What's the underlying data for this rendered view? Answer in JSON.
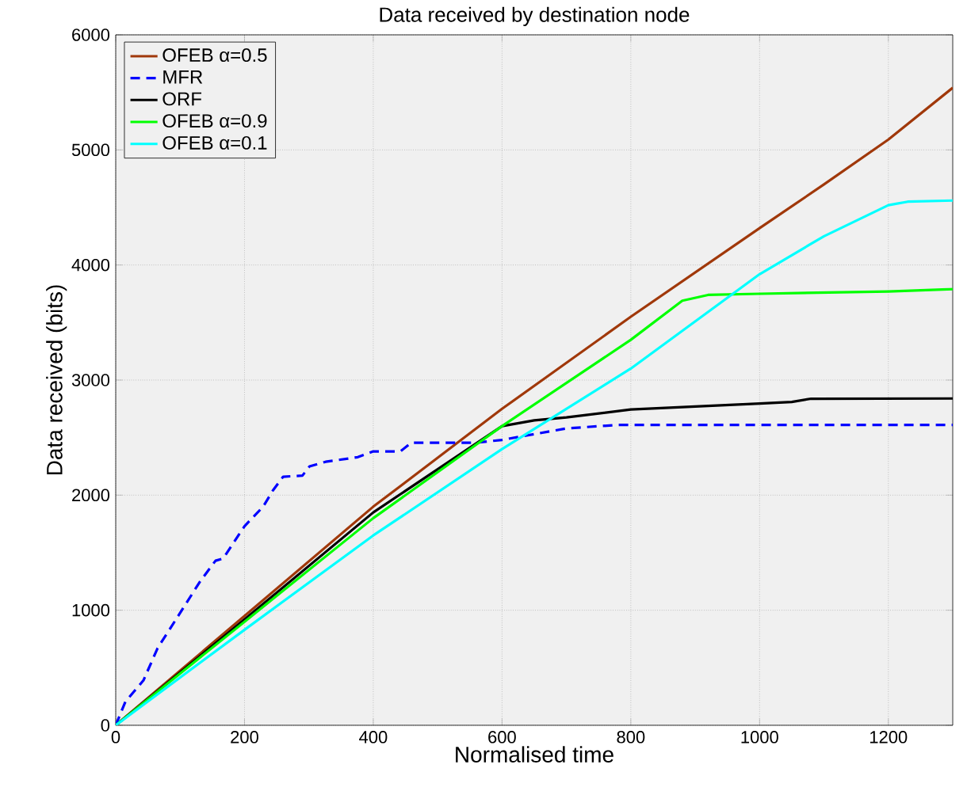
{
  "chart_data": {
    "type": "line",
    "title": "Data received by destination node",
    "xlabel": "Normalised time",
    "ylabel": "Data received (bits)",
    "xlim": [
      0,
      1300
    ],
    "ylim": [
      0,
      6000
    ],
    "xticks": [
      0,
      200,
      400,
      600,
      800,
      1000,
      1200
    ],
    "yticks": [
      0,
      1000,
      2000,
      3000,
      4000,
      5000,
      6000
    ],
    "grid": true,
    "legend": "top left",
    "series": [
      {
        "name": "OFEB α=0.5",
        "color": "#a0380a",
        "line_style": "solid",
        "x": [
          0,
          200,
          400,
          600,
          800,
          1000,
          1100,
          1200,
          1300
        ],
        "values": [
          0,
          950,
          1900,
          2750,
          3550,
          4320,
          4700,
          5090,
          5540
        ]
      },
      {
        "name": "MFR",
        "color": "#0000ff",
        "line_style": "dashed",
        "x": [
          0,
          15,
          43,
          65,
          97,
          131,
          155,
          167,
          200,
          229,
          244,
          260,
          290,
          301,
          326,
          376,
          400,
          442,
          459,
          559,
          600,
          650,
          700,
          780,
          1300
        ],
        "values": [
          0,
          205,
          390,
          670,
          950,
          1250,
          1430,
          1450,
          1730,
          1900,
          2040,
          2160,
          2170,
          2250,
          2290,
          2330,
          2380,
          2380,
          2455,
          2455,
          2480,
          2530,
          2580,
          2610,
          2610
        ]
      },
      {
        "name": "ORF",
        "color": "#000000",
        "line_style": "solid",
        "x": [
          0,
          200,
          400,
          600,
          650,
          700,
          800,
          900,
          1000,
          1050,
          1080,
          1300
        ],
        "values": [
          0,
          920,
          1850,
          2600,
          2650,
          2676,
          2744,
          2770,
          2796,
          2810,
          2838,
          2840
        ]
      },
      {
        "name": "OFEB α=0.9",
        "color": "#00ff00",
        "line_style": "solid",
        "x": [
          0,
          200,
          400,
          600,
          800,
          880,
          920,
          1000,
          1200,
          1300
        ],
        "values": [
          0,
          900,
          1800,
          2600,
          3350,
          3690,
          3740,
          3750,
          3770,
          3790
        ]
      },
      {
        "name": "OFEB α=0.1",
        "color": "#00ffff",
        "line_style": "solid",
        "x": [
          0,
          200,
          400,
          600,
          800,
          1000,
          1100,
          1200,
          1230,
          1300
        ],
        "values": [
          0,
          830,
          1650,
          2400,
          3100,
          3920,
          4250,
          4520,
          4550,
          4560
        ]
      }
    ]
  }
}
